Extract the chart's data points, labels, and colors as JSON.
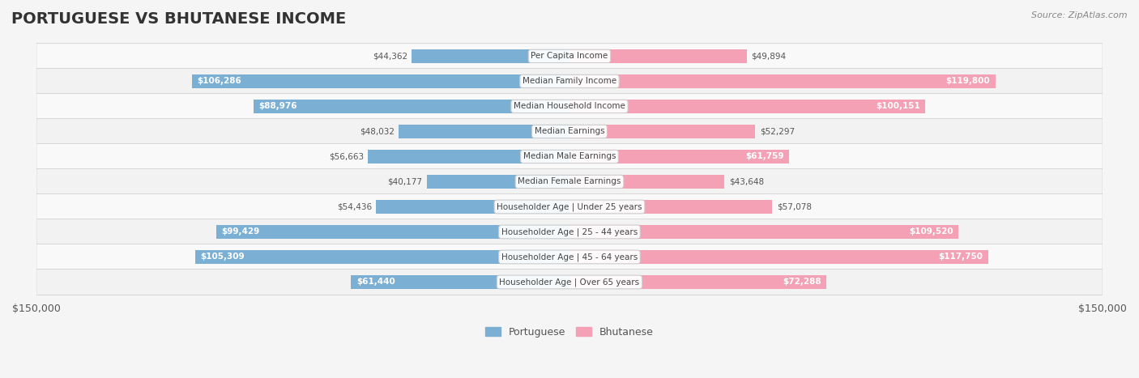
{
  "title": "PORTUGUESE VS BHUTANESE INCOME",
  "source": "Source: ZipAtlas.com",
  "categories": [
    "Per Capita Income",
    "Median Family Income",
    "Median Household Income",
    "Median Earnings",
    "Median Male Earnings",
    "Median Female Earnings",
    "Householder Age | Under 25 years",
    "Householder Age | 25 - 44 years",
    "Householder Age | 45 - 64 years",
    "Householder Age | Over 65 years"
  ],
  "portuguese_values": [
    44362,
    106286,
    88976,
    48032,
    56663,
    40177,
    54436,
    99429,
    105309,
    61440
  ],
  "bhutanese_values": [
    49894,
    119800,
    100151,
    52297,
    61759,
    43648,
    57078,
    109520,
    117750,
    72288
  ],
  "portuguese_labels": [
    "$44,362",
    "$106,286",
    "$88,976",
    "$48,032",
    "$56,663",
    "$40,177",
    "$54,436",
    "$99,429",
    "$105,309",
    "$61,440"
  ],
  "bhutanese_labels": [
    "$49,894",
    "$119,800",
    "$100,151",
    "$52,297",
    "$61,759",
    "$43,648",
    "$57,078",
    "$109,520",
    "$117,750",
    "$72,288"
  ],
  "portuguese_color": "#7BAFD4",
  "bhutanese_color": "#F4A0B5",
  "portuguese_color_dark": "#5B9BC4",
  "bhutanese_color_dark": "#E87090",
  "max_value": 150000,
  "bar_height": 0.55,
  "background_color": "#f5f5f5",
  "row_bg_light": "#ffffff",
  "row_bg_dark": "#eeeeee",
  "title_fontsize": 14,
  "label_fontsize": 8.5,
  "axis_label_fontsize": 9
}
